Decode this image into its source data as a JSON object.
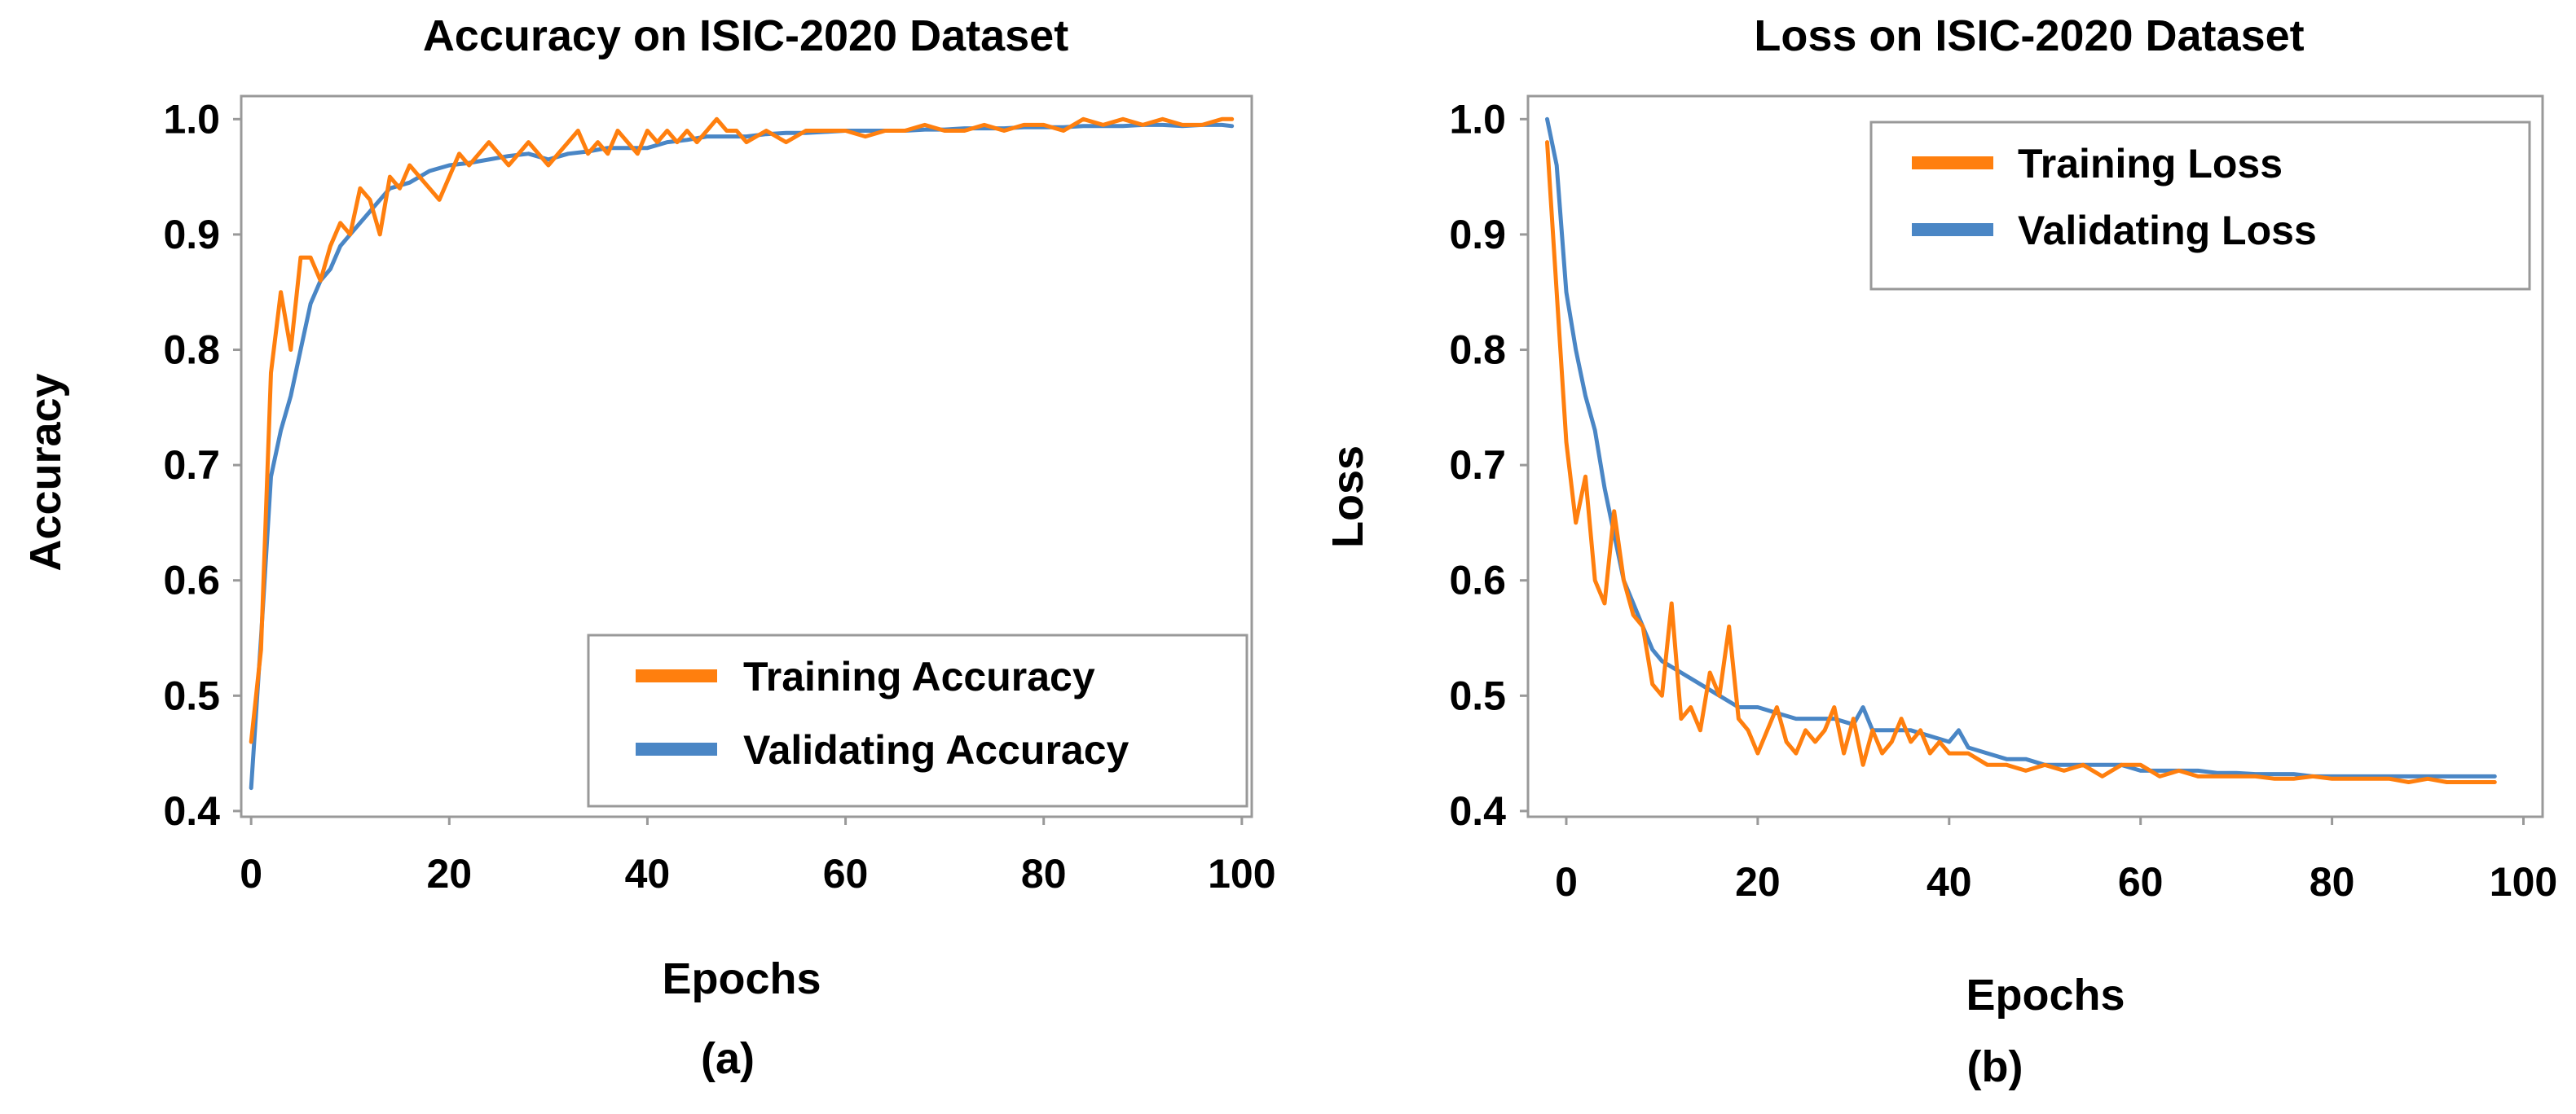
{
  "chart_data": [
    {
      "type": "line",
      "panel_label": "(a)",
      "title": "Accuracy on ISIC-2020 Dataset",
      "xlabel": "Epochs",
      "ylabel": "Accuracy",
      "xlim": [
        -1,
        101
      ],
      "ylim": [
        0.395,
        1.02
      ],
      "xticks": [
        0,
        20,
        40,
        60,
        80,
        100
      ],
      "yticks": [
        0.4,
        0.5,
        0.6,
        0.7,
        0.8,
        0.9,
        1.0
      ],
      "ytick_labels": [
        "0.4",
        "0.5",
        "0.6",
        "0.7",
        "0.8",
        "0.9",
        "1.0"
      ],
      "grid": false,
      "legend_position": "lower-right",
      "series": [
        {
          "name": "Training Accuracy",
          "color": "#ff7f0e",
          "x": [
            0,
            1,
            2,
            3,
            4,
            5,
            6,
            7,
            8,
            9,
            10,
            11,
            12,
            13,
            14,
            15,
            16,
            17,
            18,
            19,
            20,
            21,
            22,
            23,
            24,
            25,
            26,
            27,
            28,
            29,
            30,
            31,
            32,
            33,
            34,
            35,
            36,
            37,
            38,
            39,
            40,
            41,
            42,
            43,
            44,
            45,
            46,
            47,
            48,
            49,
            50,
            52,
            54,
            56,
            58,
            60,
            62,
            64,
            66,
            68,
            70,
            72,
            74,
            76,
            78,
            80,
            82,
            84,
            86,
            88,
            90,
            92,
            94,
            96,
            98,
            99
          ],
          "y": [
            0.46,
            0.54,
            0.78,
            0.85,
            0.8,
            0.88,
            0.88,
            0.86,
            0.89,
            0.91,
            0.9,
            0.94,
            0.93,
            0.9,
            0.95,
            0.94,
            0.96,
            0.95,
            0.94,
            0.93,
            0.95,
            0.97,
            0.96,
            0.97,
            0.98,
            0.97,
            0.96,
            0.97,
            0.98,
            0.97,
            0.96,
            0.97,
            0.98,
            0.99,
            0.97,
            0.98,
            0.97,
            0.99,
            0.98,
            0.97,
            0.99,
            0.98,
            0.99,
            0.98,
            0.99,
            0.98,
            0.99,
            1.0,
            0.99,
            0.99,
            0.98,
            0.99,
            0.98,
            0.99,
            0.99,
            0.99,
            0.985,
            0.99,
            0.99,
            0.995,
            0.99,
            0.99,
            0.995,
            0.99,
            0.995,
            0.995,
            0.99,
            1.0,
            0.995,
            1.0,
            0.995,
            1.0,
            0.995,
            0.995,
            1.0,
            1.0
          ]
        },
        {
          "name": "Validating Accuracy",
          "color": "#4a86c5",
          "x": [
            0,
            1,
            2,
            3,
            4,
            5,
            6,
            7,
            8,
            9,
            10,
            12,
            14,
            16,
            18,
            20,
            22,
            24,
            26,
            28,
            30,
            32,
            34,
            36,
            38,
            40,
            42,
            44,
            46,
            48,
            50,
            52,
            54,
            56,
            58,
            60,
            62,
            64,
            66,
            68,
            70,
            72,
            74,
            76,
            78,
            80,
            82,
            84,
            86,
            88,
            90,
            92,
            94,
            96,
            98,
            99
          ],
          "y": [
            0.42,
            0.55,
            0.69,
            0.73,
            0.76,
            0.8,
            0.84,
            0.86,
            0.87,
            0.89,
            0.9,
            0.92,
            0.94,
            0.945,
            0.955,
            0.96,
            0.962,
            0.965,
            0.968,
            0.97,
            0.965,
            0.97,
            0.972,
            0.975,
            0.975,
            0.975,
            0.98,
            0.982,
            0.985,
            0.985,
            0.985,
            0.987,
            0.988,
            0.988,
            0.989,
            0.99,
            0.99,
            0.99,
            0.99,
            0.991,
            0.991,
            0.992,
            0.992,
            0.992,
            0.993,
            0.993,
            0.993,
            0.994,
            0.994,
            0.994,
            0.995,
            0.995,
            0.994,
            0.995,
            0.995,
            0.994
          ]
        }
      ]
    },
    {
      "type": "line",
      "panel_label": "(b)",
      "title": "Loss on ISIC-2020 Dataset",
      "xlabel": "Epochs",
      "ylabel": "Loss",
      "xlim": [
        -4,
        102
      ],
      "ylim": [
        0.395,
        1.02
      ],
      "xticks": [
        0,
        20,
        40,
        60,
        80,
        100
      ],
      "yticks": [
        0.4,
        0.5,
        0.6,
        0.7,
        0.8,
        0.9,
        1.0
      ],
      "ytick_labels": [
        "0.4",
        "0.5",
        "0.6",
        "0.7",
        "0.8",
        "0.9",
        "1.0"
      ],
      "grid": false,
      "legend_position": "upper-right",
      "series": [
        {
          "name": "Training Loss",
          "color": "#ff7f0e",
          "x": [
            -2,
            -1,
            0,
            1,
            2,
            3,
            4,
            5,
            6,
            7,
            8,
            9,
            10,
            11,
            12,
            13,
            14,
            15,
            16,
            17,
            18,
            19,
            20,
            21,
            22,
            23,
            24,
            25,
            26,
            27,
            28,
            29,
            30,
            31,
            32,
            33,
            34,
            35,
            36,
            37,
            38,
            39,
            40,
            42,
            44,
            46,
            48,
            50,
            52,
            54,
            56,
            58,
            60,
            62,
            64,
            66,
            68,
            70,
            72,
            74,
            76,
            78,
            80,
            82,
            84,
            86,
            88,
            90,
            92,
            94,
            96,
            97
          ],
          "y": [
            0.98,
            0.85,
            0.72,
            0.65,
            0.69,
            0.6,
            0.58,
            0.66,
            0.6,
            0.57,
            0.56,
            0.51,
            0.5,
            0.58,
            0.48,
            0.49,
            0.47,
            0.52,
            0.5,
            0.56,
            0.48,
            0.47,
            0.45,
            0.47,
            0.49,
            0.46,
            0.45,
            0.47,
            0.46,
            0.47,
            0.49,
            0.45,
            0.48,
            0.44,
            0.47,
            0.45,
            0.46,
            0.48,
            0.46,
            0.47,
            0.45,
            0.46,
            0.45,
            0.45,
            0.44,
            0.44,
            0.435,
            0.44,
            0.435,
            0.44,
            0.43,
            0.44,
            0.44,
            0.43,
            0.435,
            0.43,
            0.43,
            0.43,
            0.43,
            0.428,
            0.428,
            0.43,
            0.428,
            0.428,
            0.428,
            0.428,
            0.425,
            0.428,
            0.425,
            0.425,
            0.425,
            0.425
          ]
        },
        {
          "name": "Validating Loss",
          "color": "#4a86c5",
          "x": [
            -2,
            -1,
            0,
            1,
            2,
            3,
            4,
            5,
            6,
            7,
            8,
            9,
            10,
            12,
            14,
            16,
            18,
            20,
            22,
            24,
            26,
            28,
            30,
            31,
            32,
            34,
            36,
            38,
            40,
            41,
            42,
            44,
            46,
            48,
            50,
            52,
            54,
            56,
            58,
            60,
            62,
            64,
            66,
            68,
            70,
            72,
            74,
            76,
            78,
            80,
            82,
            84,
            86,
            88,
            90,
            92,
            94,
            96,
            97
          ],
          "y": [
            1.0,
            0.96,
            0.85,
            0.8,
            0.76,
            0.73,
            0.68,
            0.64,
            0.6,
            0.58,
            0.56,
            0.54,
            0.53,
            0.52,
            0.51,
            0.5,
            0.49,
            0.49,
            0.485,
            0.48,
            0.48,
            0.48,
            0.475,
            0.49,
            0.47,
            0.47,
            0.47,
            0.465,
            0.46,
            0.47,
            0.455,
            0.45,
            0.445,
            0.445,
            0.44,
            0.44,
            0.44,
            0.44,
            0.44,
            0.435,
            0.435,
            0.435,
            0.435,
            0.433,
            0.433,
            0.432,
            0.432,
            0.432,
            0.43,
            0.43,
            0.43,
            0.43,
            0.43,
            0.43,
            0.43,
            0.43,
            0.43,
            0.43,
            0.43
          ]
        }
      ]
    }
  ]
}
